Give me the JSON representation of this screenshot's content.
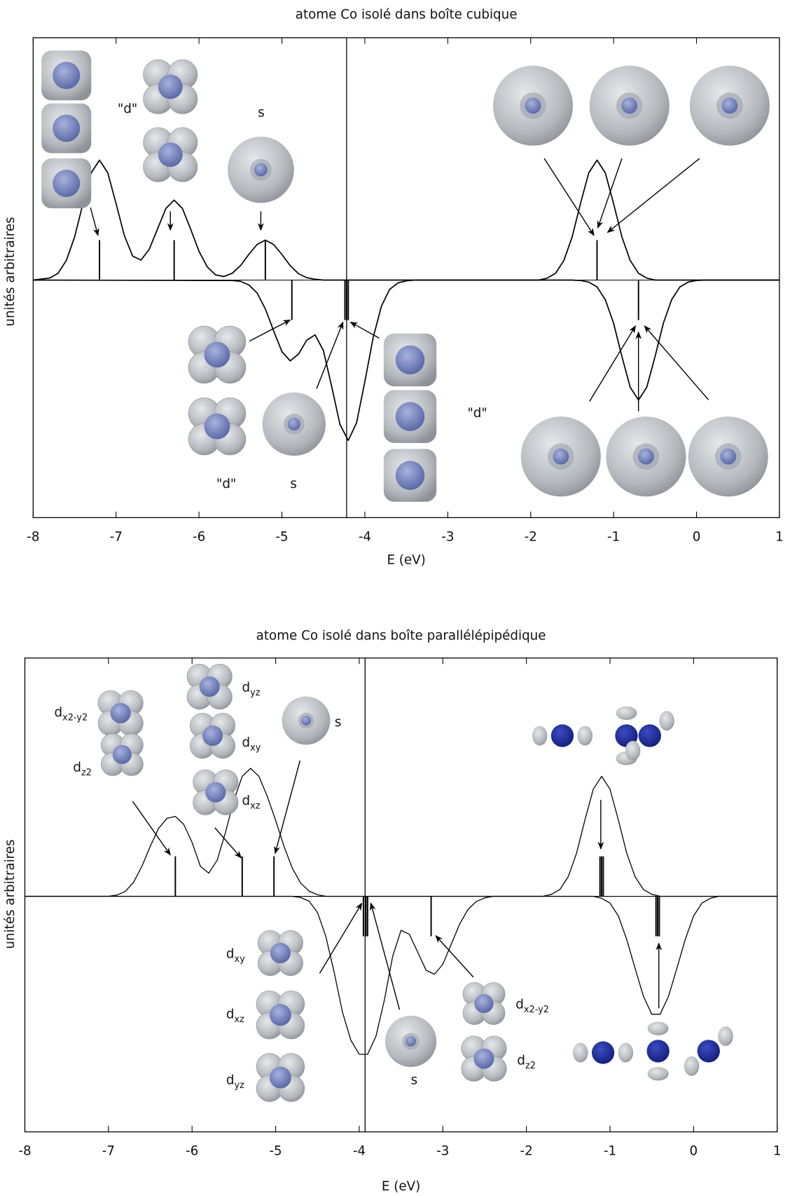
{
  "chart_data": [
    {
      "type": "line",
      "title": "atome Co isolé dans boîte cubique",
      "x_label": "E (eV)",
      "y_label": "unités arbitraires",
      "xlim": [
        -8,
        1
      ],
      "ylim": [
        -5.94,
        6.06
      ],
      "xticks": [
        -8,
        -7,
        -6,
        -5,
        -4,
        -3,
        -2,
        -1,
        0,
        1
      ],
      "fermi_level": -4.22,
      "series": [
        {
          "color": "#000000",
          "x": [
            -8,
            -7.8,
            -7.7,
            -7.6,
            -7.5,
            -7.4,
            -7.3,
            -7.2,
            -7.1,
            -7.0,
            -6.9,
            -6.8,
            -6.7,
            -6.6,
            -6.5,
            -6.4,
            -6.3,
            -6.2,
            -6.1,
            -6.0,
            -5.9,
            -5.8,
            -5.7,
            -5.6,
            -5.5,
            -5.4,
            -5.3,
            -5.2,
            -5.1,
            -5.0,
            -4.9,
            -4.8,
            -4.7,
            -4.6,
            -4.5,
            -1.9,
            -1.8,
            -1.7,
            -1.6,
            -1.5,
            -1.4,
            -1.3,
            -1.2,
            -1.1,
            -1.0,
            -0.9,
            -0.8,
            -0.7,
            -0.6,
            -0.5,
            1
          ],
          "values": [
            0,
            0.05,
            0.17,
            0.49,
            1.08,
            1.91,
            2.68,
            3,
            2.68,
            1.91,
            1.11,
            0.6,
            0.5,
            0.77,
            1.28,
            1.79,
            2,
            1.79,
            1.27,
            0.72,
            0.33,
            0.13,
            0.09,
            0.17,
            0.36,
            0.64,
            0.89,
            1,
            0.89,
            0.64,
            0.36,
            0.16,
            0.06,
            0.02,
            0,
            0,
            0.05,
            0.17,
            0.49,
            1.08,
            1.91,
            2.68,
            3,
            2.68,
            1.91,
            1.08,
            0.49,
            0.17,
            0.05,
            0,
            0
          ]
        },
        {
          "color": "#000000",
          "x": [
            -8,
            -5.6,
            -5.5,
            -5.4,
            -5.3,
            -5.2,
            -5.1,
            -5.0,
            -4.9,
            -4.8,
            -4.7,
            -4.6,
            -4.5,
            -4.4,
            -4.3,
            -4.2,
            -4.1,
            -4.0,
            -3.9,
            -3.8,
            -3.7,
            -3.6,
            -3.5,
            -3.4,
            -1.5,
            -1.4,
            -1.3,
            -1.2,
            -1.1,
            -1.0,
            -0.9,
            -0.8,
            -0.7,
            -0.6,
            -0.5,
            -0.4,
            -0.3,
            -0.2,
            -0.1,
            0,
            0.1,
            1
          ],
          "values": [
            0,
            -0.01,
            -0.03,
            -0.12,
            -0.32,
            -0.72,
            -1.27,
            -1.79,
            -2.02,
            -1.85,
            -1.5,
            -1.37,
            -1.76,
            -2.66,
            -3.61,
            -4.01,
            -3.57,
            -2.54,
            -1.44,
            -0.65,
            -0.23,
            -0.07,
            -0.02,
            0,
            0,
            -0.01,
            -0.05,
            -0.17,
            -0.49,
            -1.08,
            -1.91,
            -2.68,
            -3,
            -2.68,
            -1.91,
            -1.08,
            -0.49,
            -0.17,
            -0.05,
            -0.01,
            0,
            0
          ]
        }
      ],
      "sticks": {
        "color": "#000000",
        "x": [
          -7.2,
          -6.3,
          -5.2,
          -1.2,
          -4.88,
          -4.24,
          -4.22,
          -4.2,
          -0.7
        ],
        "values": [
          1,
          1,
          1,
          1,
          -1,
          -1,
          -1,
          -1,
          -1
        ]
      },
      "annotations": [
        {
          "text": "\"d\""
        },
        {
          "text": "s"
        },
        {
          "text": "\"d\""
        },
        {
          "text": "\"d\""
        },
        {
          "text": "s"
        }
      ]
    },
    {
      "type": "line",
      "title": "atome Co isolé dans boîte parallélépipédique",
      "x_label": "E (eV)",
      "y_label": "unités arbitraires",
      "xlim": [
        -8,
        1
      ],
      "ylim": [
        -5.89,
        5.96
      ],
      "xticks": [
        -8,
        -7,
        -6,
        -5,
        -4,
        -3,
        -2,
        -1,
        0,
        1
      ],
      "fermi_level": -3.93,
      "series": [
        {
          "color": "#000000",
          "x": [
            -8,
            -7.0,
            -6.9,
            -6.8,
            -6.7,
            -6.6,
            -6.5,
            -6.4,
            -6.3,
            -6.2,
            -6.1,
            -6.0,
            -5.9,
            -5.8,
            -5.7,
            -5.6,
            -5.5,
            -5.4,
            -5.3,
            -5.2,
            -5.1,
            -5.0,
            -4.9,
            -4.8,
            -4.7,
            -4.6,
            -4.5,
            -4.4,
            -1.8,
            -1.7,
            -1.6,
            -1.5,
            -1.4,
            -1.3,
            -1.2,
            -1.1,
            -1.0,
            -0.9,
            -0.8,
            -0.7,
            -0.6,
            -0.5,
            -0.4,
            1
          ],
          "values": [
            0,
            0,
            0.03,
            0.12,
            0.35,
            0.75,
            1.25,
            1.7,
            1.95,
            2,
            1.8,
            1.35,
            0.75,
            0.58,
            0.9,
            1.6,
            2.4,
            3,
            3.2,
            3,
            2.5,
            1.9,
            1.25,
            0.7,
            0.33,
            0.13,
            0.04,
            0,
            0,
            0.05,
            0.17,
            0.49,
            1.08,
            1.91,
            2.68,
            3,
            2.68,
            1.91,
            1.08,
            0.49,
            0.17,
            0.05,
            0,
            0
          ]
        },
        {
          "color": "#000000",
          "x": [
            -8,
            -4.8,
            -4.7,
            -4.6,
            -4.5,
            -4.4,
            -4.3,
            -4.2,
            -4.1,
            -4.0,
            -3.9,
            -3.8,
            -3.7,
            -3.6,
            -3.5,
            -3.4,
            -3.3,
            -3.2,
            -3.1,
            -3.0,
            -2.9,
            -2.8,
            -2.7,
            -2.6,
            -2.5,
            -2.4,
            -1.2,
            -1.1,
            -1.0,
            -0.9,
            -0.8,
            -0.7,
            -0.6,
            -0.5,
            -0.4,
            -0.3,
            -0.2,
            -0.1,
            0,
            0.1,
            0.2,
            0.3,
            1
          ],
          "values": [
            0,
            0,
            -0.03,
            -0.12,
            -0.4,
            -1,
            -1.9,
            -2.9,
            -3.6,
            -3.95,
            -3.95,
            -3.5,
            -2.6,
            -1.5,
            -0.85,
            -0.95,
            -1.4,
            -1.85,
            -1.95,
            -1.7,
            -1.2,
            -0.7,
            -0.33,
            -0.13,
            -0.04,
            0,
            0,
            -0.05,
            -0.17,
            -0.49,
            -1.08,
            -1.8,
            -2.5,
            -2.95,
            -2.95,
            -2.5,
            -1.8,
            -1.08,
            -0.49,
            -0.17,
            -0.05,
            0,
            0
          ]
        }
      ],
      "sticks": {
        "color": "#000000",
        "x": [
          -6.2,
          -5.4,
          -5.02,
          -1.12,
          -1.1,
          -1.08,
          -3.95,
          -3.92,
          -3.9,
          -3.14,
          -0.45,
          -0.43,
          -0.41
        ],
        "values": [
          1,
          1,
          1,
          1,
          1,
          1,
          -1,
          -1,
          -1,
          -1,
          -1,
          -1,
          -1
        ]
      },
      "annotations": [
        {
          "text": "d",
          "sub": "x2-y2"
        },
        {
          "text": "d",
          "sub": "z2"
        },
        {
          "text": "d",
          "sub": "yz"
        },
        {
          "text": "d",
          "sub": "xy"
        },
        {
          "text": "s"
        },
        {
          "text": "d",
          "sub": "xz"
        },
        {
          "text": "d",
          "sub": "xy"
        },
        {
          "text": "d",
          "sub": "xz"
        },
        {
          "text": "d",
          "sub": "yz"
        },
        {
          "text": "s"
        },
        {
          "text": "d",
          "sub": "x2-y2"
        },
        {
          "text": "d",
          "sub": "z2"
        }
      ]
    }
  ]
}
